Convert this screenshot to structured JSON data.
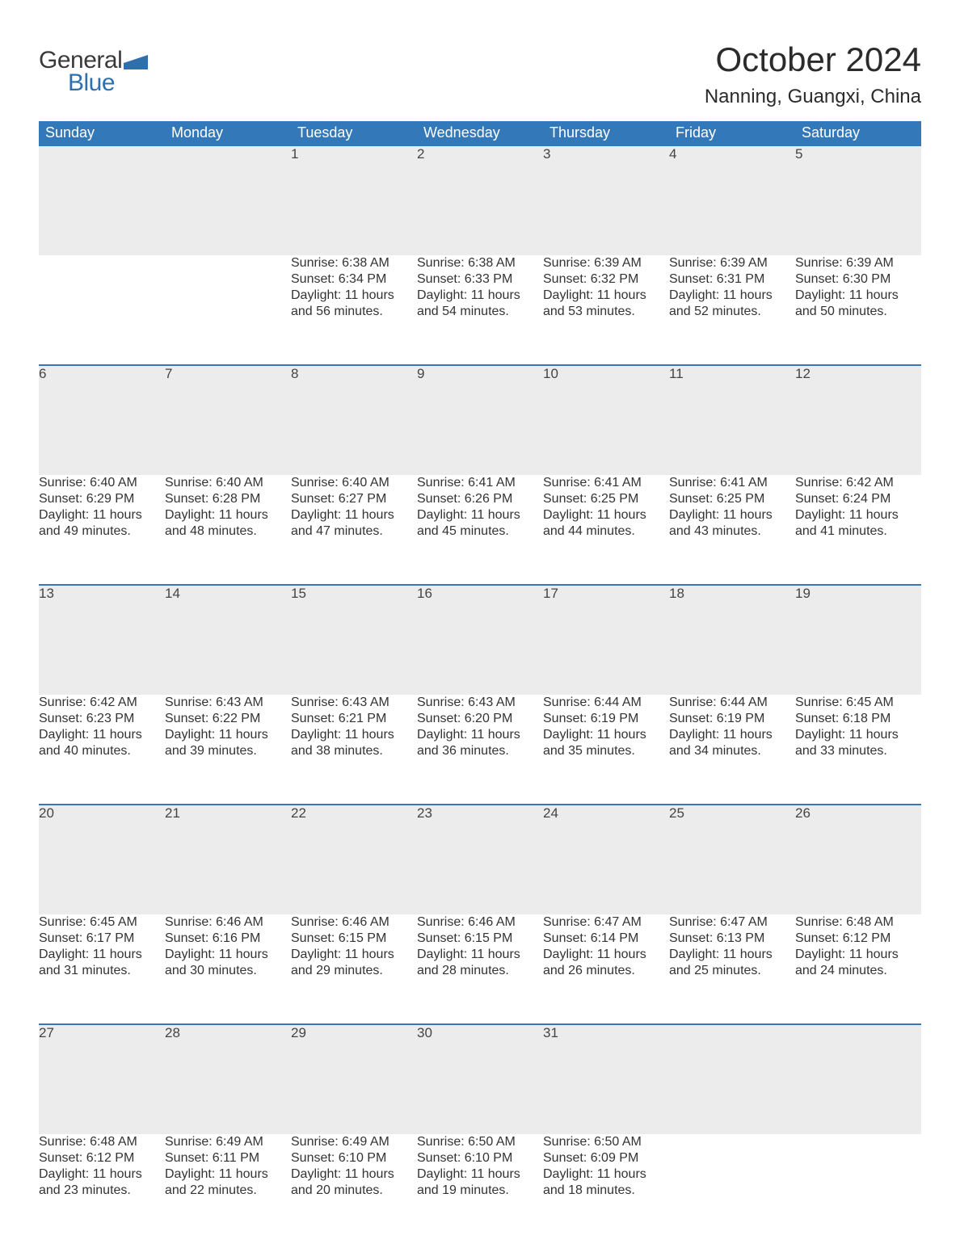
{
  "brand": {
    "line1": "General",
    "line2": "Blue",
    "flag_color": "#2f6fae"
  },
  "header": {
    "month_title": "October 2024",
    "location": "Nanning, Guangxi, China"
  },
  "colors": {
    "header_bg": "#3378b8",
    "header_text": "#ffffff",
    "daynum_bg": "#ececec",
    "row_border": "#3378b8",
    "body_text": "#333333",
    "page_bg": "#ffffff"
  },
  "weekday_headers": [
    "Sunday",
    "Monday",
    "Tuesday",
    "Wednesday",
    "Thursday",
    "Friday",
    "Saturday"
  ],
  "labels": {
    "sunrise": "Sunrise:",
    "sunset": "Sunset:",
    "daylight": "Daylight:"
  },
  "weeks": [
    [
      null,
      null,
      {
        "day": "1",
        "sunrise": "6:38 AM",
        "sunset": "6:34 PM",
        "daylight": "11 hours and 56 minutes."
      },
      {
        "day": "2",
        "sunrise": "6:38 AM",
        "sunset": "6:33 PM",
        "daylight": "11 hours and 54 minutes."
      },
      {
        "day": "3",
        "sunrise": "6:39 AM",
        "sunset": "6:32 PM",
        "daylight": "11 hours and 53 minutes."
      },
      {
        "day": "4",
        "sunrise": "6:39 AM",
        "sunset": "6:31 PM",
        "daylight": "11 hours and 52 minutes."
      },
      {
        "day": "5",
        "sunrise": "6:39 AM",
        "sunset": "6:30 PM",
        "daylight": "11 hours and 50 minutes."
      }
    ],
    [
      {
        "day": "6",
        "sunrise": "6:40 AM",
        "sunset": "6:29 PM",
        "daylight": "11 hours and 49 minutes."
      },
      {
        "day": "7",
        "sunrise": "6:40 AM",
        "sunset": "6:28 PM",
        "daylight": "11 hours and 48 minutes."
      },
      {
        "day": "8",
        "sunrise": "6:40 AM",
        "sunset": "6:27 PM",
        "daylight": "11 hours and 47 minutes."
      },
      {
        "day": "9",
        "sunrise": "6:41 AM",
        "sunset": "6:26 PM",
        "daylight": "11 hours and 45 minutes."
      },
      {
        "day": "10",
        "sunrise": "6:41 AM",
        "sunset": "6:25 PM",
        "daylight": "11 hours and 44 minutes."
      },
      {
        "day": "11",
        "sunrise": "6:41 AM",
        "sunset": "6:25 PM",
        "daylight": "11 hours and 43 minutes."
      },
      {
        "day": "12",
        "sunrise": "6:42 AM",
        "sunset": "6:24 PM",
        "daylight": "11 hours and 41 minutes."
      }
    ],
    [
      {
        "day": "13",
        "sunrise": "6:42 AM",
        "sunset": "6:23 PM",
        "daylight": "11 hours and 40 minutes."
      },
      {
        "day": "14",
        "sunrise": "6:43 AM",
        "sunset": "6:22 PM",
        "daylight": "11 hours and 39 minutes."
      },
      {
        "day": "15",
        "sunrise": "6:43 AM",
        "sunset": "6:21 PM",
        "daylight": "11 hours and 38 minutes."
      },
      {
        "day": "16",
        "sunrise": "6:43 AM",
        "sunset": "6:20 PM",
        "daylight": "11 hours and 36 minutes."
      },
      {
        "day": "17",
        "sunrise": "6:44 AM",
        "sunset": "6:19 PM",
        "daylight": "11 hours and 35 minutes."
      },
      {
        "day": "18",
        "sunrise": "6:44 AM",
        "sunset": "6:19 PM",
        "daylight": "11 hours and 34 minutes."
      },
      {
        "day": "19",
        "sunrise": "6:45 AM",
        "sunset": "6:18 PM",
        "daylight": "11 hours and 33 minutes."
      }
    ],
    [
      {
        "day": "20",
        "sunrise": "6:45 AM",
        "sunset": "6:17 PM",
        "daylight": "11 hours and 31 minutes."
      },
      {
        "day": "21",
        "sunrise": "6:46 AM",
        "sunset": "6:16 PM",
        "daylight": "11 hours and 30 minutes."
      },
      {
        "day": "22",
        "sunrise": "6:46 AM",
        "sunset": "6:15 PM",
        "daylight": "11 hours and 29 minutes."
      },
      {
        "day": "23",
        "sunrise": "6:46 AM",
        "sunset": "6:15 PM",
        "daylight": "11 hours and 28 minutes."
      },
      {
        "day": "24",
        "sunrise": "6:47 AM",
        "sunset": "6:14 PM",
        "daylight": "11 hours and 26 minutes."
      },
      {
        "day": "25",
        "sunrise": "6:47 AM",
        "sunset": "6:13 PM",
        "daylight": "11 hours and 25 minutes."
      },
      {
        "day": "26",
        "sunrise": "6:48 AM",
        "sunset": "6:12 PM",
        "daylight": "11 hours and 24 minutes."
      }
    ],
    [
      {
        "day": "27",
        "sunrise": "6:48 AM",
        "sunset": "6:12 PM",
        "daylight": "11 hours and 23 minutes."
      },
      {
        "day": "28",
        "sunrise": "6:49 AM",
        "sunset": "6:11 PM",
        "daylight": "11 hours and 22 minutes."
      },
      {
        "day": "29",
        "sunrise": "6:49 AM",
        "sunset": "6:10 PM",
        "daylight": "11 hours and 20 minutes."
      },
      {
        "day": "30",
        "sunrise": "6:50 AM",
        "sunset": "6:10 PM",
        "daylight": "11 hours and 19 minutes."
      },
      {
        "day": "31",
        "sunrise": "6:50 AM",
        "sunset": "6:09 PM",
        "daylight": "11 hours and 18 minutes."
      },
      null,
      null
    ]
  ]
}
